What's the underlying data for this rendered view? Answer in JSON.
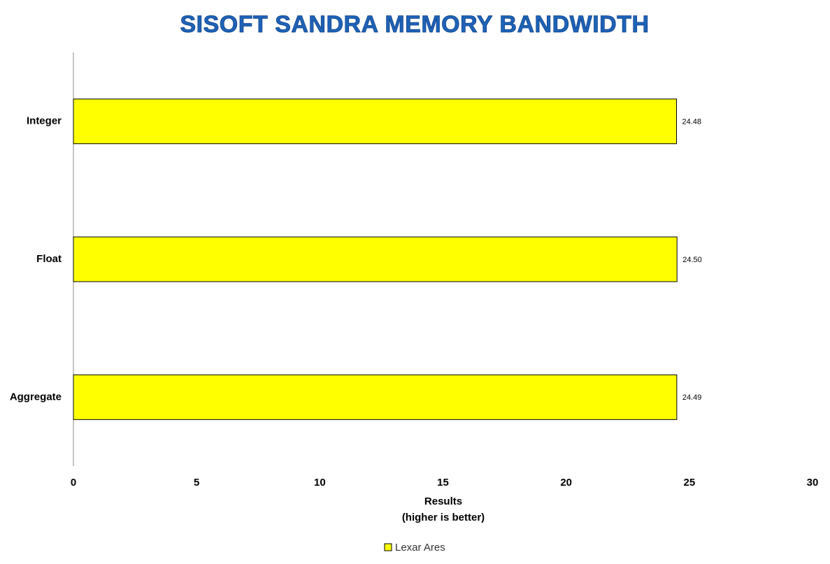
{
  "chart_data": {
    "type": "bar",
    "orientation": "horizontal",
    "title": "SISOFT SANDRA MEMORY BANDWIDTH",
    "categories": [
      "Integer",
      "Float",
      "Aggregate"
    ],
    "series": [
      {
        "name": "Lexar Ares",
        "color": "#ffff00",
        "values": [
          24.48,
          24.5,
          24.49
        ],
        "value_labels": [
          "24.48",
          "24.50",
          "24.49"
        ]
      }
    ],
    "xlim": [
      0,
      30
    ],
    "xticks": [
      0,
      5,
      10,
      15,
      20,
      25,
      30
    ],
    "xlabel": [
      "Results",
      "(higher is better)"
    ],
    "grid": false,
    "legend": "bottom"
  }
}
